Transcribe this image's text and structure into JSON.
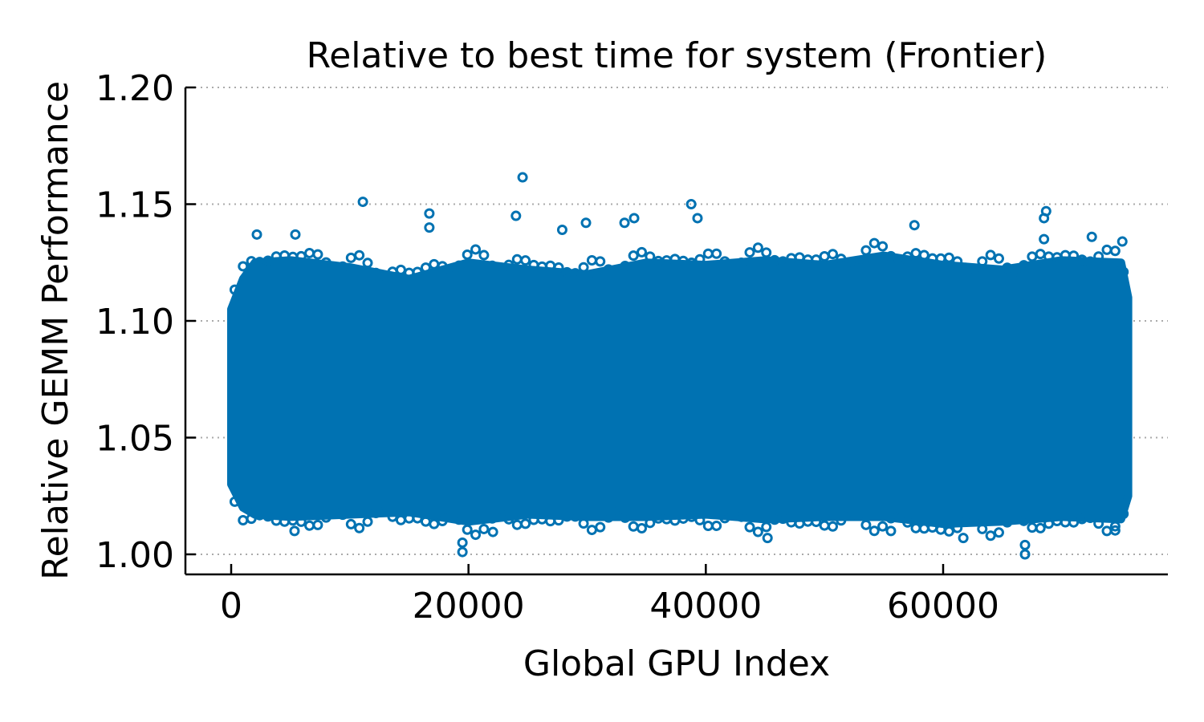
{
  "chart_data": {
    "type": "scatter",
    "title": "Relative to best time for system (Frontier)",
    "xlabel": "Global GPU Index",
    "ylabel": "Relative GEMM Performance",
    "xlim": [
      -4000,
      79000
    ],
    "ylim": [
      0.992,
      1.2
    ],
    "xticks": [
      0,
      20000,
      40000,
      60000
    ],
    "xtick_labels": [
      "0",
      "20000",
      "40000",
      "60000"
    ],
    "yticks": [
      1.0,
      1.05,
      1.1,
      1.15,
      1.2
    ],
    "ytick_labels": [
      "1.00",
      "1.05",
      "1.10",
      "1.15",
      "1.20"
    ],
    "grid": "y-dotted",
    "marker": "open-circle",
    "color": "#0072b2",
    "dense_band": {
      "x": [
        0,
        1000,
        2000,
        5000,
        10000,
        15000,
        20000,
        25000,
        30000,
        35000,
        40000,
        45000,
        50000,
        55000,
        60000,
        65000,
        70000,
        75000,
        75600
      ],
      "upper": [
        1.105,
        1.118,
        1.125,
        1.126,
        1.123,
        1.118,
        1.125,
        1.122,
        1.12,
        1.125,
        1.124,
        1.126,
        1.124,
        1.128,
        1.124,
        1.122,
        1.126,
        1.125,
        1.11
      ],
      "lower": [
        1.03,
        1.02,
        1.017,
        1.016,
        1.017,
        1.018,
        1.014,
        1.017,
        1.016,
        1.016,
        1.017,
        1.015,
        1.016,
        1.016,
        1.013,
        1.014,
        1.016,
        1.015,
        1.025
      ]
    },
    "outliers": [
      {
        "x": 11100,
        "y": 1.151
      },
      {
        "x": 24560,
        "y": 1.1615
      },
      {
        "x": 38770,
        "y": 1.15
      },
      {
        "x": 68680,
        "y": 1.147
      },
      {
        "x": 16700,
        "y": 1.146
      },
      {
        "x": 16700,
        "y": 1.14
      },
      {
        "x": 24000,
        "y": 1.145
      },
      {
        "x": 27900,
        "y": 1.139
      },
      {
        "x": 29900,
        "y": 1.142
      },
      {
        "x": 33150,
        "y": 1.142
      },
      {
        "x": 33960,
        "y": 1.144
      },
      {
        "x": 39300,
        "y": 1.144
      },
      {
        "x": 68500,
        "y": 1.144
      },
      {
        "x": 68500,
        "y": 1.135
      },
      {
        "x": 57580,
        "y": 1.141
      },
      {
        "x": 5410,
        "y": 1.137
      },
      {
        "x": 2165,
        "y": 1.137
      },
      {
        "x": 72530,
        "y": 1.136
      },
      {
        "x": 75100,
        "y": 1.134
      },
      {
        "x": 5340,
        "y": 1.01
      },
      {
        "x": 19490,
        "y": 1.005
      },
      {
        "x": 19490,
        "y": 1.001
      },
      {
        "x": 22060,
        "y": 1.0096
      },
      {
        "x": 45200,
        "y": 1.007
      },
      {
        "x": 55600,
        "y": 1.01
      },
      {
        "x": 61700,
        "y": 1.007
      },
      {
        "x": 66900,
        "y": 1.0
      },
      {
        "x": 66900,
        "y": 1.004
      },
      {
        "x": 74500,
        "y": 1.012
      }
    ]
  }
}
